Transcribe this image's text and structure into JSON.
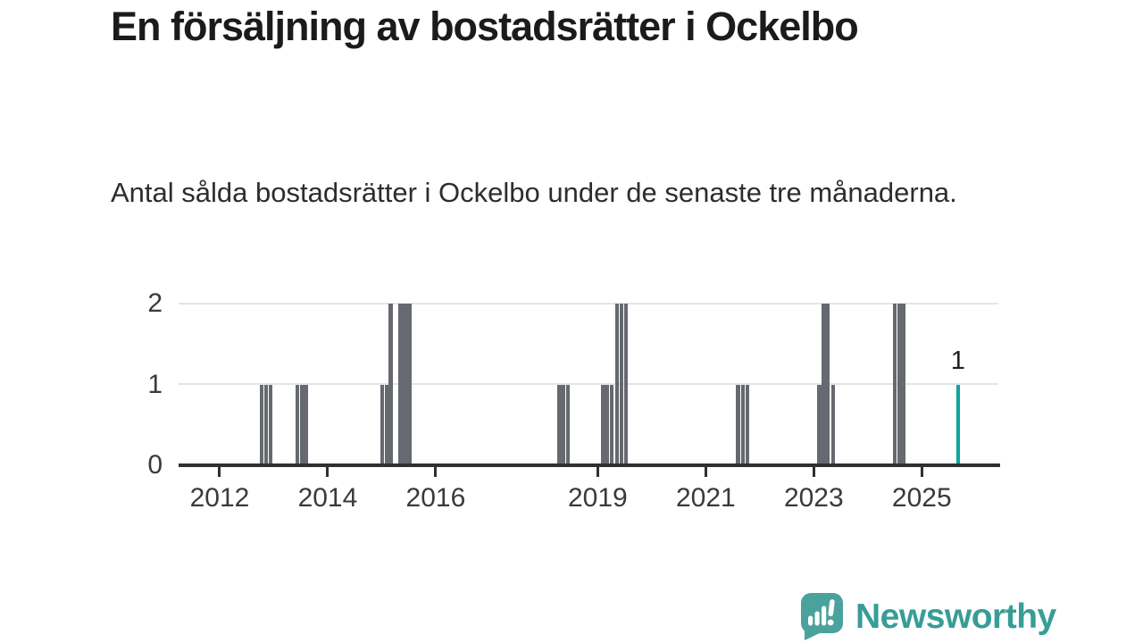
{
  "header": {
    "title": "En försäljning av bostadsrätter i Ockelbo",
    "subtitle": "Antal sålda bostadsrätter i Ockelbo under de senaste tre månaderna."
  },
  "footer": {
    "brand": "Newsworthy",
    "logo_icon": "newsworthy-speech-bubble-chart-icon",
    "brand_color": "#379d96",
    "logo_bubble_color": "#4aa29c"
  },
  "chart_data": {
    "type": "bar",
    "title": "En försäljning av bostadsrätter i Ockelbo",
    "subtitle": "Antal sålda bostadsrätter i Ockelbo under de senaste tre månaderna.",
    "x_unit": "year (monthly bars, rolling 3-month sales count)",
    "x_range": [
      2011.24,
      2026.45
    ],
    "ylim": [
      0,
      2
    ],
    "yticks": [
      "0",
      "1",
      "2"
    ],
    "xticks": [
      "2012",
      "2014",
      "2016",
      "2019",
      "2021",
      "2023",
      "2025"
    ],
    "grid": "horizontal",
    "colors": {
      "bar": "#66696f",
      "highlight": "#0ca69e",
      "axis": "#2e3033",
      "grid": "#e4e4e4",
      "tick_text": "#3a3a3a"
    },
    "bars": [
      {
        "year": 2012.78,
        "value": 1
      },
      {
        "year": 2012.86,
        "value": 1
      },
      {
        "year": 2012.94,
        "value": 1
      },
      {
        "year": 2013.44,
        "value": 1
      },
      {
        "year": 2013.52,
        "value": 1
      },
      {
        "year": 2013.6,
        "value": 1
      },
      {
        "year": 2015.01,
        "value": 1
      },
      {
        "year": 2015.09,
        "value": 1
      },
      {
        "year": 2015.17,
        "value": 2
      },
      {
        "year": 2015.35,
        "value": 2
      },
      {
        "year": 2015.43,
        "value": 2
      },
      {
        "year": 2015.51,
        "value": 2
      },
      {
        "year": 2018.28,
        "value": 1
      },
      {
        "year": 2018.36,
        "value": 1
      },
      {
        "year": 2018.45,
        "value": 1
      },
      {
        "year": 2019.09,
        "value": 1
      },
      {
        "year": 2019.17,
        "value": 1
      },
      {
        "year": 2019.26,
        "value": 1
      },
      {
        "year": 2019.36,
        "value": 2
      },
      {
        "year": 2019.44,
        "value": 2
      },
      {
        "year": 2019.52,
        "value": 2
      },
      {
        "year": 2021.6,
        "value": 1
      },
      {
        "year": 2021.69,
        "value": 1
      },
      {
        "year": 2021.77,
        "value": 1
      },
      {
        "year": 2023.1,
        "value": 1
      },
      {
        "year": 2023.18,
        "value": 2
      },
      {
        "year": 2023.26,
        "value": 2
      },
      {
        "year": 2023.36,
        "value": 1
      },
      {
        "year": 2024.5,
        "value": 2
      },
      {
        "year": 2024.58,
        "value": 2
      },
      {
        "year": 2024.66,
        "value": 2
      },
      {
        "year": 2025.67,
        "value": 1,
        "highlight": true,
        "label": "1"
      }
    ]
  }
}
